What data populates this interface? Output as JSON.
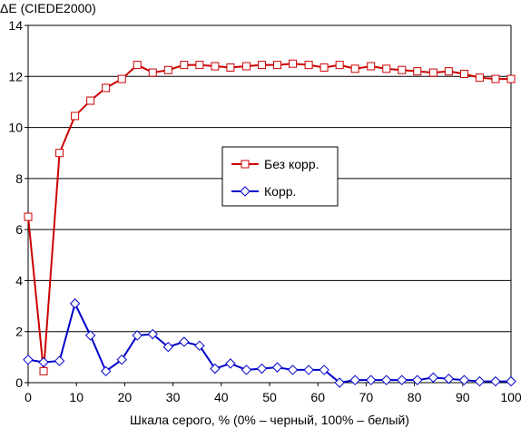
{
  "chart_data": {
    "type": "line",
    "title": "",
    "ylabel": "ΔE (CIEDE2000)",
    "xlabel": "Шкала серого, % (0% – черный, 100% – белый)",
    "xlim": [
      0,
      100
    ],
    "ylim": [
      0,
      14
    ],
    "xticks": [
      0,
      10,
      20,
      30,
      40,
      50,
      60,
      70,
      80,
      90,
      100
    ],
    "yticks": [
      0,
      2,
      4,
      6,
      8,
      10,
      12,
      14
    ],
    "grid": "horizontal",
    "legend_position": "center",
    "x": [
      0,
      3.2,
      6.5,
      9.7,
      12.9,
      16.1,
      19.4,
      22.6,
      25.8,
      29.0,
      32.3,
      35.5,
      38.7,
      41.9,
      45.2,
      48.4,
      51.6,
      54.8,
      58.1,
      61.3,
      64.5,
      67.7,
      71.0,
      74.2,
      77.4,
      80.6,
      83.9,
      87.1,
      90.3,
      93.5,
      96.8,
      100
    ],
    "series": [
      {
        "name": "Без корр.",
        "color": "#cc0000",
        "marker": "square",
        "values": [
          6.5,
          0.45,
          9.0,
          10.45,
          11.05,
          11.55,
          11.9,
          12.45,
          12.15,
          12.25,
          12.45,
          12.45,
          12.4,
          12.35,
          12.4,
          12.45,
          12.45,
          12.5,
          12.45,
          12.35,
          12.45,
          12.3,
          12.4,
          12.3,
          12.25,
          12.2,
          12.15,
          12.2,
          12.1,
          11.95,
          11.9,
          11.9
        ]
      },
      {
        "name": "Корр.",
        "color": "#0000cc",
        "marker": "diamond",
        "values": [
          0.9,
          0.8,
          0.85,
          3.1,
          1.85,
          0.45,
          0.9,
          1.85,
          1.9,
          1.4,
          1.6,
          1.45,
          0.55,
          0.75,
          0.5,
          0.55,
          0.6,
          0.5,
          0.5,
          0.5,
          0.0,
          0.1,
          0.1,
          0.1,
          0.1,
          0.1,
          0.2,
          0.15,
          0.1,
          0.05,
          0.05,
          0.05
        ]
      }
    ]
  }
}
